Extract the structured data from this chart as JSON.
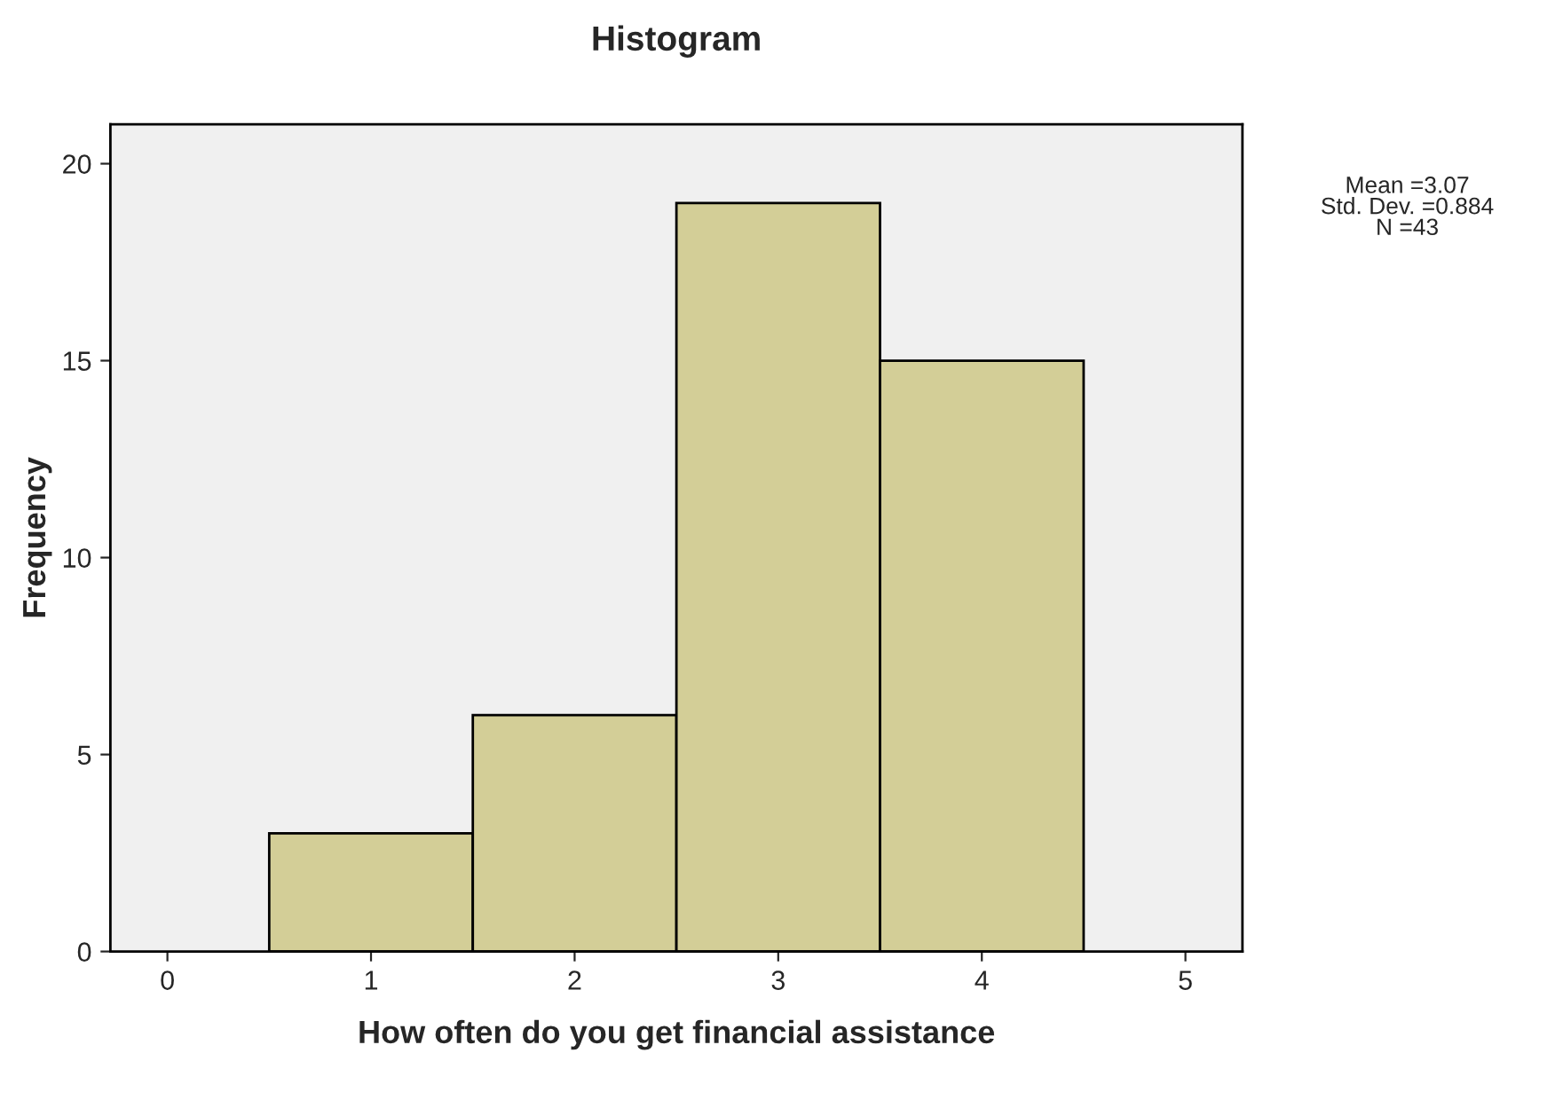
{
  "chart_data": {
    "type": "histogram",
    "title": "Histogram",
    "xlabel": "How often do you get financial assistance",
    "ylabel": "Frequency",
    "bins": [
      0.5,
      1.5,
      2.5,
      3.5,
      4.5
    ],
    "values": [
      3,
      6,
      19,
      15
    ],
    "color": "#d3ce97",
    "xlim": [
      -0.28,
      5.28
    ],
    "xticks": [
      0,
      1,
      2,
      3,
      4,
      5
    ],
    "ylim": [
      0,
      21
    ],
    "yticks": [
      0,
      5,
      10,
      15,
      20
    ],
    "grid": false,
    "annotations": [
      "Mean =3.07\nStd. Dev. =0.884\nN =43"
    ]
  }
}
